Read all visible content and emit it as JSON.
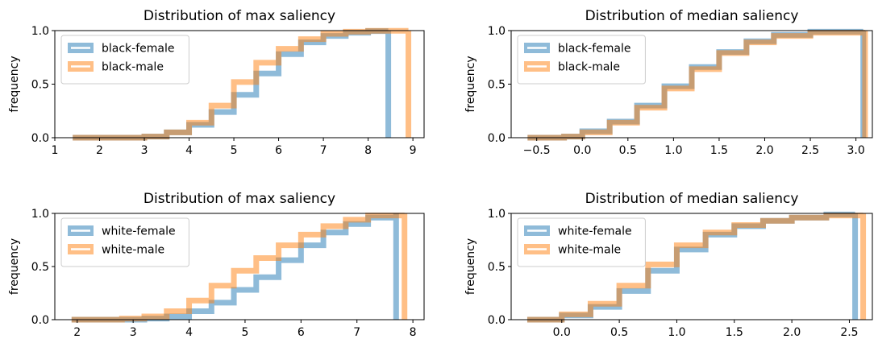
{
  "chart_data": [
    {
      "type": "step-histogram-cdf",
      "title": "Distribution of max saliency",
      "ylabel": "frequency",
      "xlim": [
        1,
        9.25
      ],
      "ylim": [
        0,
        1.0
      ],
      "xticks": [
        1,
        2,
        3,
        4,
        5,
        6,
        7,
        8,
        9
      ],
      "yticks": [
        0.0,
        0.5,
        1.0
      ],
      "legend_position": "upper-left",
      "series": [
        {
          "name": "black-female",
          "color": "#1f77b4",
          "x": [
            1.4,
            2.5,
            3.0,
            3.5,
            4.0,
            4.5,
            5.0,
            5.5,
            6.0,
            6.5,
            7.0,
            7.5,
            8.0,
            8.45
          ],
          "y": [
            0.0,
            0.0,
            0.01,
            0.05,
            0.12,
            0.24,
            0.4,
            0.6,
            0.78,
            0.89,
            0.95,
            0.98,
            0.995,
            1.0
          ]
        },
        {
          "name": "black-male",
          "color": "#ff7f0e",
          "x": [
            1.4,
            2.5,
            3.0,
            3.5,
            4.0,
            4.5,
            5.0,
            5.5,
            6.0,
            6.5,
            7.0,
            7.5,
            8.0,
            8.9
          ],
          "y": [
            0.0,
            0.0,
            0.01,
            0.05,
            0.14,
            0.3,
            0.52,
            0.7,
            0.83,
            0.92,
            0.97,
            0.99,
            0.998,
            1.0
          ]
        }
      ]
    },
    {
      "type": "step-histogram-cdf",
      "title": "Distribution of median saliency",
      "ylabel": "frequency",
      "xlim": [
        -0.78,
        3.18
      ],
      "ylim": [
        0,
        1.0
      ],
      "xticks": [
        -0.5,
        0.0,
        0.5,
        1.0,
        1.5,
        2.0,
        2.5,
        3.0
      ],
      "xticklabels": [
        "−0.5",
        "0.0",
        "0.5",
        "1.0",
        "1.5",
        "2.0",
        "2.5",
        "3.0"
      ],
      "yticks": [
        0.0,
        0.5,
        1.0
      ],
      "legend_position": "upper-left",
      "series": [
        {
          "name": "black-female",
          "color": "#1f77b4",
          "x": [
            -0.6,
            -0.2,
            0.0,
            0.3,
            0.6,
            0.9,
            1.2,
            1.5,
            1.8,
            2.1,
            2.5,
            3.08
          ],
          "y": [
            0.0,
            0.01,
            0.06,
            0.15,
            0.3,
            0.48,
            0.66,
            0.8,
            0.9,
            0.96,
            0.99,
            1.0
          ]
        },
        {
          "name": "black-male",
          "color": "#ff7f0e",
          "x": [
            -0.6,
            -0.2,
            0.0,
            0.3,
            0.6,
            0.9,
            1.2,
            1.5,
            1.8,
            2.1,
            2.5,
            3.1
          ],
          "y": [
            0.0,
            0.01,
            0.05,
            0.14,
            0.28,
            0.46,
            0.64,
            0.79,
            0.89,
            0.95,
            0.98,
            1.0
          ]
        }
      ]
    },
    {
      "type": "step-histogram-cdf",
      "title": "Distribution of max saliency",
      "ylabel": "frequency",
      "xlim": [
        1.6,
        8.2
      ],
      "ylim": [
        0,
        1.0
      ],
      "xticks": [
        2,
        3,
        4,
        5,
        6,
        7,
        8
      ],
      "yticks": [
        0.0,
        0.5,
        1.0
      ],
      "legend_position": "upper-left",
      "series": [
        {
          "name": "white-female",
          "color": "#1f77b4",
          "x": [
            1.9,
            2.8,
            3.2,
            3.6,
            4.0,
            4.4,
            4.8,
            5.2,
            5.6,
            6.0,
            6.4,
            6.8,
            7.2,
            7.7
          ],
          "y": [
            0.0,
            0.0,
            0.01,
            0.03,
            0.08,
            0.16,
            0.28,
            0.4,
            0.56,
            0.7,
            0.82,
            0.9,
            0.96,
            1.0
          ]
        },
        {
          "name": "white-male",
          "color": "#ff7f0e",
          "x": [
            1.9,
            2.8,
            3.2,
            3.6,
            4.0,
            4.4,
            4.8,
            5.2,
            5.6,
            6.0,
            6.4,
            6.8,
            7.2,
            7.85
          ],
          "y": [
            0.0,
            0.01,
            0.03,
            0.08,
            0.18,
            0.32,
            0.46,
            0.58,
            0.7,
            0.8,
            0.88,
            0.94,
            0.98,
            1.0
          ]
        }
      ]
    },
    {
      "type": "step-histogram-cdf",
      "title": "Distribution of median saliency",
      "ylabel": "frequency",
      "xlim": [
        -0.44,
        2.7
      ],
      "ylim": [
        0,
        1.0
      ],
      "xticks": [
        0.0,
        0.5,
        1.0,
        1.5,
        2.0,
        2.5
      ],
      "xticklabels": [
        "0.0",
        "0.5",
        "1.0",
        "1.5",
        "2.0",
        "2.5"
      ],
      "yticks": [
        0.0,
        0.5,
        1.0
      ],
      "legend_position": "upper-left",
      "series": [
        {
          "name": "white-female",
          "color": "#1f77b4",
          "x": [
            -0.3,
            0.0,
            0.25,
            0.5,
            0.75,
            1.0,
            1.25,
            1.5,
            1.75,
            2.0,
            2.3,
            2.55
          ],
          "y": [
            0.0,
            0.04,
            0.12,
            0.27,
            0.46,
            0.66,
            0.8,
            0.88,
            0.93,
            0.96,
            0.99,
            1.0
          ]
        },
        {
          "name": "white-male",
          "color": "#ff7f0e",
          "x": [
            -0.3,
            0.0,
            0.25,
            0.5,
            0.75,
            1.0,
            1.25,
            1.5,
            1.75,
            2.0,
            2.3,
            2.62
          ],
          "y": [
            0.0,
            0.05,
            0.15,
            0.32,
            0.52,
            0.7,
            0.82,
            0.89,
            0.93,
            0.96,
            0.98,
            1.0
          ]
        }
      ]
    }
  ]
}
